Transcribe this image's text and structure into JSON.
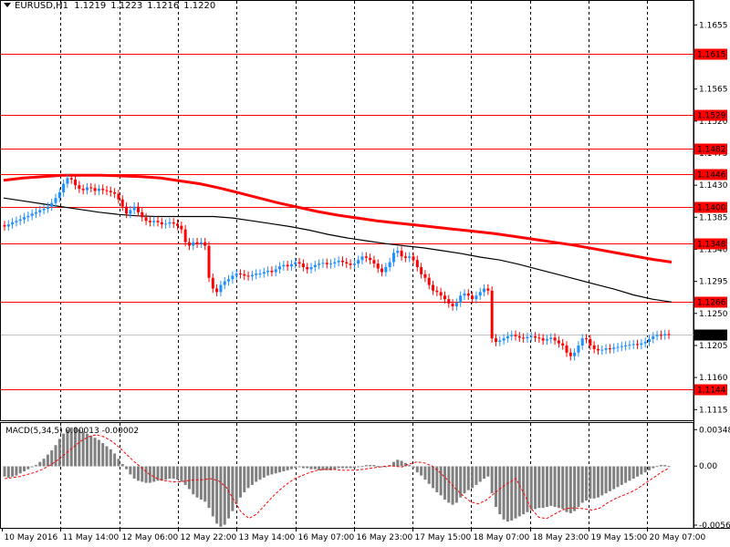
{
  "header": {
    "symbol": "EURUSD,H1",
    "ohlc": [
      "1.1219",
      "1.1223",
      "1.1216",
      "1.1220"
    ]
  },
  "colors": {
    "level_line": "#ff0000",
    "ma_slow": "#ff0000",
    "ma_fast": "#000000",
    "candle_up": "#1e90ff",
    "candle_down": "#ff0000",
    "macd_hist": "#808080",
    "macd_signal": "#ff0000",
    "grid": "#000000",
    "current_price_tag": "#000000"
  },
  "chart_data": [
    {
      "type": "candlestick",
      "title": "EURUSD,H1",
      "price_axis_labels": [
        "1.1655",
        "1.1610",
        "1.1565",
        "1.1520",
        "1.1475",
        "1.1430",
        "1.1385",
        "1.1340",
        "1.1295",
        "1.1250",
        "1.1205",
        "1.1160",
        "1.1115"
      ],
      "ylim": [
        1.11,
        1.169
      ],
      "level_labels": [
        "1.1615",
        "1.1529",
        "1.1482",
        "1.1446",
        "1.1400",
        "1.1348",
        "1.1266",
        "1.1144"
      ],
      "current_price": "1.1220",
      "time_labels": [
        "10 May 2016",
        "11 May 14:00",
        "12 May 06:00",
        "12 May 22:00",
        "13 May 14:00",
        "16 May 07:00",
        "16 May 23:00",
        "17 May 15:00",
        "18 May 07:00",
        "18 May 23:00",
        "19 May 15:00",
        "20 May 07:00"
      ],
      "close": [
        1.1372,
        1.1375,
        1.1378,
        1.138,
        1.1382,
        1.1385,
        1.1387,
        1.139,
        1.1392,
        1.1395,
        1.1397,
        1.14,
        1.1405,
        1.1412,
        1.142,
        1.1432,
        1.144,
        1.1438,
        1.143,
        1.1425,
        1.1423,
        1.1427,
        1.1426,
        1.1422,
        1.1425,
        1.1423,
        1.1422,
        1.142,
        1.1418,
        1.141,
        1.14,
        1.139,
        1.1395,
        1.14,
        1.1392,
        1.1385,
        1.138,
        1.1378,
        1.138,
        1.1378,
        1.1375,
        1.1376,
        1.1378,
        1.1376,
        1.1373,
        1.1368,
        1.135,
        1.1345,
        1.135,
        1.1348,
        1.135,
        1.1345,
        1.13,
        1.1285,
        1.128,
        1.129,
        1.1295,
        1.1298,
        1.1303,
        1.1306,
        1.1305,
        1.1303,
        1.1302,
        1.1304,
        1.1306,
        1.1306,
        1.1308,
        1.131,
        1.1308,
        1.1312,
        1.1316,
        1.1318,
        1.1316,
        1.1319,
        1.1322,
        1.132,
        1.1315,
        1.1312,
        1.1315,
        1.1318,
        1.132,
        1.1321,
        1.1319,
        1.132,
        1.1322,
        1.1324,
        1.1322,
        1.132,
        1.1318,
        1.132,
        1.1325,
        1.133,
        1.1328,
        1.1325,
        1.132,
        1.1313,
        1.1308,
        1.1315,
        1.1322,
        1.1335,
        1.1338,
        1.133,
        1.1328,
        1.133,
        1.1325,
        1.1315,
        1.1305,
        1.13,
        1.129,
        1.1282,
        1.128,
        1.1275,
        1.127,
        1.1264,
        1.126,
        1.1265,
        1.1275,
        1.1278,
        1.1275,
        1.127,
        1.1275,
        1.128,
        1.1285,
        1.1282,
        1.1215,
        1.121,
        1.1212,
        1.1215,
        1.1218,
        1.122,
        1.1218,
        1.1216,
        1.1215,
        1.1217,
        1.1218,
        1.1216,
        1.1215,
        1.1212,
        1.1214,
        1.1216,
        1.1212,
        1.1208,
        1.1205,
        1.1195,
        1.119,
        1.1195,
        1.1205,
        1.1215,
        1.1214,
        1.1205,
        1.12,
        1.1198,
        1.1199,
        1.1201,
        1.12,
        1.1202,
        1.1203,
        1.1204,
        1.1205,
        1.1206,
        1.1207,
        1.1206,
        1.1208,
        1.121,
        1.1214,
        1.1218,
        1.122,
        1.1219,
        1.1221,
        1.122
      ],
      "ma_fast": [
        1.1412,
        1.1408,
        1.1404,
        1.14,
        1.1396,
        1.1392,
        1.1389,
        1.1387,
        1.1386,
        1.1386,
        1.1386,
        1.1386,
        1.1384,
        1.138,
        1.1376,
        1.1372,
        1.1367,
        1.1361,
        1.1356,
        1.1352,
        1.1348,
        1.1345,
        1.1342,
        1.1338,
        1.1334,
        1.1329,
        1.1325,
        1.1319,
        1.1312,
        1.1305,
        1.1298,
        1.1291,
        1.1284,
        1.1276,
        1.127,
        1.1266
      ],
      "ma_slow": [
        1.1437,
        1.144,
        1.1442,
        1.1444,
        1.1444,
        1.1444,
        1.1443,
        1.1442,
        1.144,
        1.1436,
        1.1432,
        1.1426,
        1.1419,
        1.1412,
        1.1405,
        1.1399,
        1.1393,
        1.1388,
        1.1384,
        1.138,
        1.1377,
        1.1374,
        1.1371,
        1.1368,
        1.1365,
        1.1362,
        1.1358,
        1.1354,
        1.135,
        1.1346,
        1.1341,
        1.1336,
        1.1331,
        1.1326,
        1.1322
      ]
    },
    {
      "type": "bar",
      "title": "MACD(5,34,5) 0.00013 -0.00002",
      "indicator_label": "MACD(5,34,5)",
      "indicator_values": [
        "0.00013",
        "-0.00002"
      ],
      "axis_labels": [
        "0.00348",
        "0.00",
        "-0.00564"
      ],
      "ylim": [
        -0.0059,
        0.0042
      ],
      "histogram": [
        -0.001,
        -0.0011,
        -0.001,
        -0.0009,
        -0.0007,
        -0.0005,
        -0.0003,
        -0.0001,
        0.0001,
        0.0004,
        0.0007,
        0.0011,
        0.0015,
        0.002,
        0.0026,
        0.0031,
        0.0035,
        0.0037,
        0.0037,
        0.0035,
        0.0033,
        0.0031,
        0.0029,
        0.0027,
        0.0025,
        0.0022,
        0.0019,
        0.0016,
        0.0012,
        0.0007,
        0.0002,
        -0.0003,
        -0.0008,
        -0.0012,
        -0.0014,
        -0.0015,
        -0.0016,
        -0.0016,
        -0.0015,
        -0.0014,
        -0.0014,
        -0.0013,
        -0.0012,
        -0.0012,
        -0.0013,
        -0.0015,
        -0.0018,
        -0.0022,
        -0.0027,
        -0.003,
        -0.0032,
        -0.0034,
        -0.004,
        -0.0048,
        -0.0055,
        -0.0058,
        -0.0056,
        -0.005,
        -0.0043,
        -0.0036,
        -0.003,
        -0.0025,
        -0.0021,
        -0.0018,
        -0.0015,
        -0.0013,
        -0.0011,
        -0.0009,
        -0.0008,
        -0.0007,
        -0.0006,
        -0.0005,
        -0.0004,
        -0.0003,
        -0.0002,
        -0.0001,
        -0.0002,
        -0.0002,
        -0.0003,
        -0.0003,
        -0.0004,
        -0.0004,
        -0.0004,
        -0.0004,
        -0.0003,
        -0.0002,
        -0.0002,
        -0.0002,
        -0.0002,
        -0.0002,
        -0.0001,
        0.0,
        0.0001,
        0.0001,
        0.0001,
        0.0,
        -0.0001,
        -0.0001,
        0.0001,
        0.0004,
        0.0006,
        0.0005,
        0.0003,
        0.0001,
        -0.0002,
        -0.0006,
        -0.0009,
        -0.0013,
        -0.0017,
        -0.0021,
        -0.0025,
        -0.0028,
        -0.0032,
        -0.0035,
        -0.0037,
        -0.0035,
        -0.003,
        -0.0026,
        -0.0023,
        -0.0021,
        -0.0018,
        -0.0015,
        -0.0012,
        -0.001,
        -0.0026,
        -0.0039,
        -0.0046,
        -0.0051,
        -0.0053,
        -0.0052,
        -0.005,
        -0.0048,
        -0.0046,
        -0.0044,
        -0.0042,
        -0.0041,
        -0.004,
        -0.004,
        -0.0039,
        -0.0038,
        -0.0039,
        -0.004,
        -0.0041,
        -0.0044,
        -0.0045,
        -0.0043,
        -0.0039,
        -0.0035,
        -0.0033,
        -0.0031,
        -0.0031,
        -0.003,
        -0.0028,
        -0.0026,
        -0.0024,
        -0.0022,
        -0.002,
        -0.0018,
        -0.0016,
        -0.0014,
        -0.0012,
        -0.001,
        -0.0008,
        -0.0006,
        -0.0004,
        -0.0002,
        0.0,
        0.0001,
        0.0001,
        0.0
      ],
      "signal": [
        -0.0012,
        -0.0011,
        -0.001,
        -0.0008,
        -0.0006,
        -0.0003,
        0.0001,
        0.0006,
        0.0012,
        0.0018,
        0.0024,
        0.0028,
        0.003,
        0.0028,
        0.0024,
        0.0018,
        0.0011,
        0.0004,
        -0.0002,
        -0.0008,
        -0.0012,
        -0.0014,
        -0.0015,
        -0.0015,
        -0.0014,
        -0.0013,
        -0.0013,
        -0.0012,
        -0.0014,
        -0.002,
        -0.0032,
        -0.0044,
        -0.005,
        -0.0046,
        -0.0038,
        -0.003,
        -0.0023,
        -0.0017,
        -0.0012,
        -0.0009,
        -0.0006,
        -0.0004,
        -0.0003,
        -0.0003,
        -0.0004,
        -0.0004,
        -0.0004,
        -0.0003,
        -0.0002,
        -0.0001,
        0.0,
        0.0,
        -0.0001,
        0.0002,
        0.0004,
        0.0003,
        0.0,
        -0.0006,
        -0.0013,
        -0.0021,
        -0.0028,
        -0.0034,
        -0.0036,
        -0.0033,
        -0.0027,
        -0.0021,
        -0.0016,
        -0.0012,
        -0.0026,
        -0.0041,
        -0.0049,
        -0.005,
        -0.0046,
        -0.0042,
        -0.004,
        -0.004,
        -0.0041,
        -0.0042,
        -0.004,
        -0.0035,
        -0.0031,
        -0.0028,
        -0.0025,
        -0.0021,
        -0.0016,
        -0.0011,
        -0.0006,
        -0.0002
      ]
    }
  ]
}
